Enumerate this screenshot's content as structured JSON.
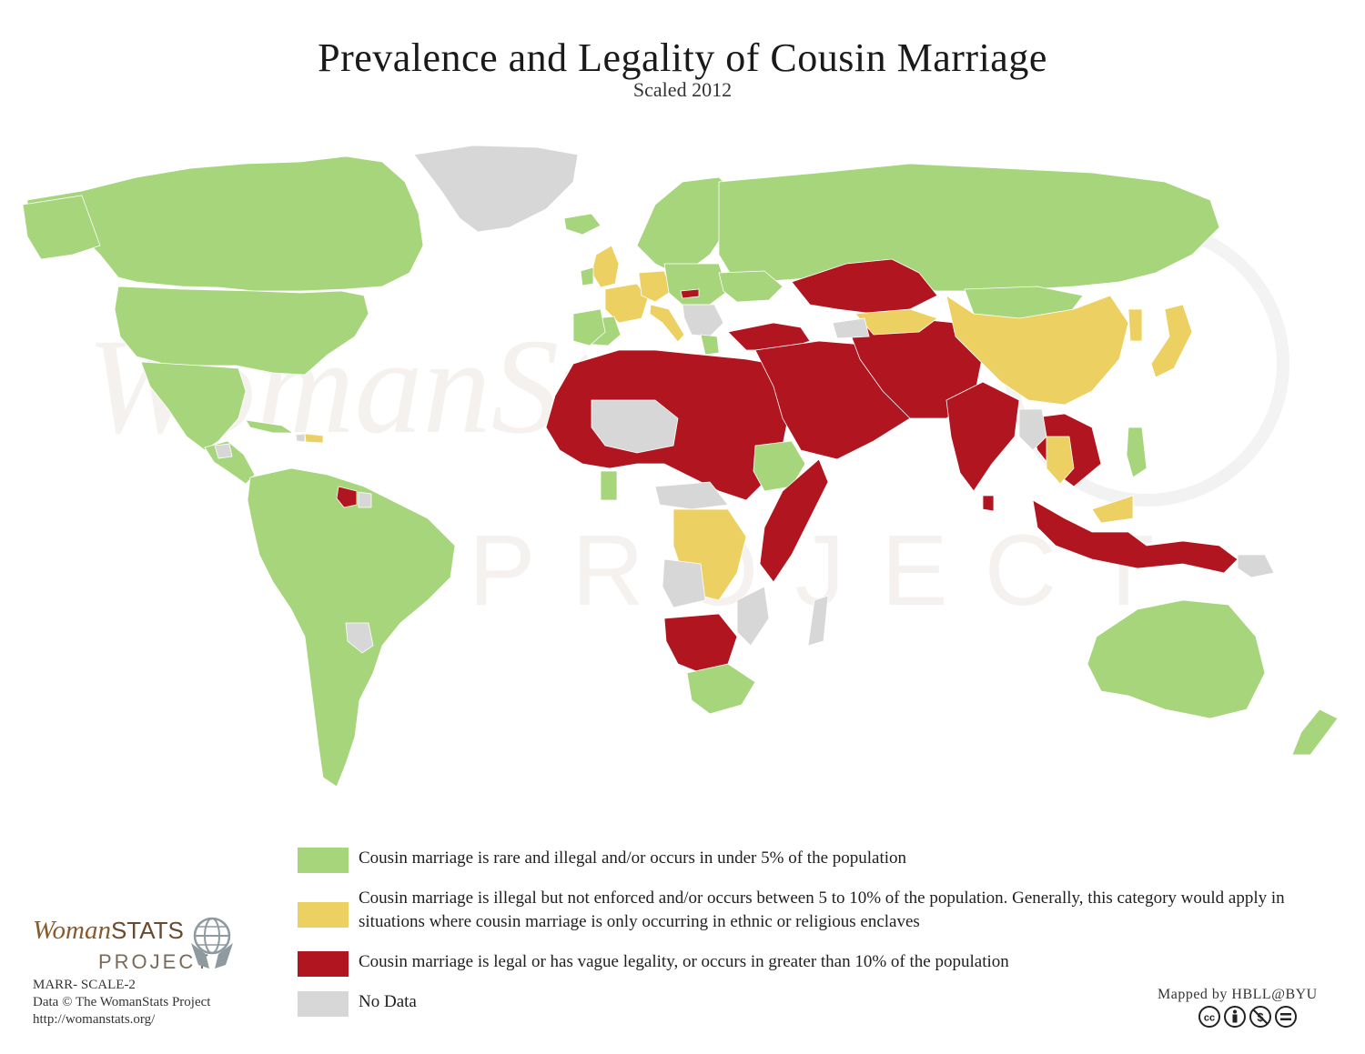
{
  "title": "Prevalence and Legality of Cousin Marriage",
  "subtitle": "Scaled 2012",
  "watermark": {
    "line1": "WomanStats",
    "line2": "PROJECT"
  },
  "colors": {
    "rare": "#a6d57c",
    "moderate": "#ecd062",
    "legal": "#b01520",
    "nodata": "#d7d7d7",
    "water": "#ffffff"
  },
  "legend": [
    {
      "category": "rare",
      "label": "Cousin marriage is rare and illegal and/or occurs in under 5% of the population"
    },
    {
      "category": "moderate",
      "label": "Cousin marriage is illegal but not enforced and/or occurs between 5 to 10% of the population. Generally, this category would apply in situations where cousin marriage is only occurring in ethnic or religious enclaves"
    },
    {
      "category": "legal",
      "label": "Cousin marriage is legal or has vague legality, or occurs in greater than 10% of the population"
    },
    {
      "category": "nodata",
      "label": "No Data"
    }
  ],
  "logo": {
    "brand_italic": "Woman",
    "brand_caps": "STATS",
    "project": "PROJECT"
  },
  "credits": {
    "map_id": "MARR- SCALE-2",
    "data": "Data © The WomanStats Project",
    "url": "http://womanstats.org/"
  },
  "mapped_by": "Mapped by HBLL@BYU",
  "license_icons": [
    "cc-icon",
    "by-icon",
    "nc-icon",
    "nd-icon"
  ]
}
